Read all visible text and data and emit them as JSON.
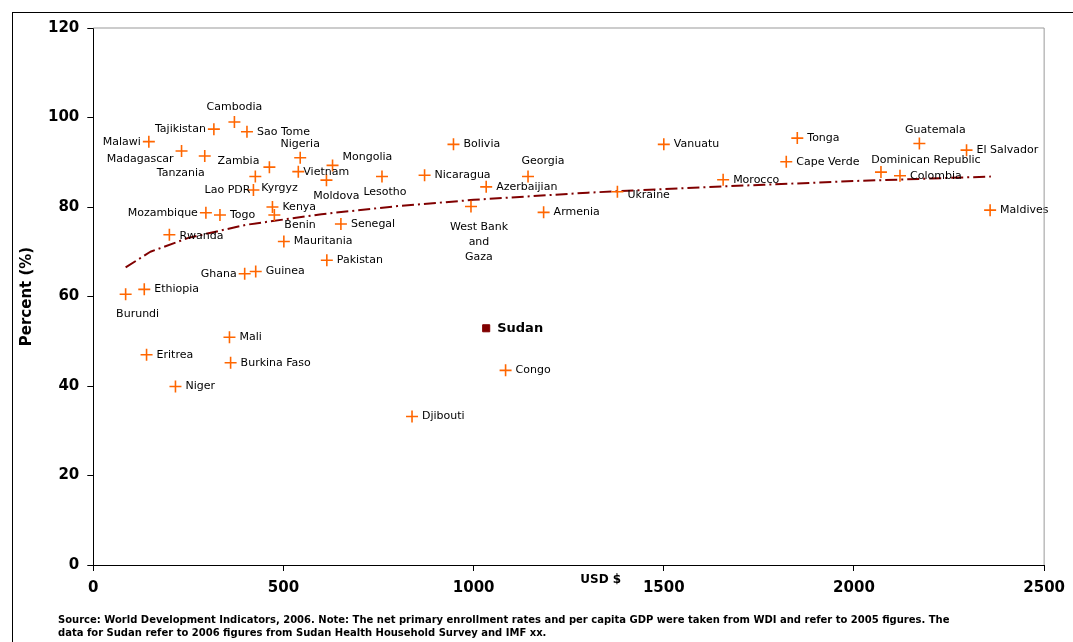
{
  "chart_data": {
    "type": "scatter",
    "xlabel": "USD $",
    "ylabel": "Percent (%)",
    "xlim": [
      0,
      2500
    ],
    "xticks": [
      0,
      500,
      1000,
      1500,
      2000,
      2500
    ],
    "ylim": [
      0,
      120
    ],
    "yticks": [
      0,
      20,
      40,
      60,
      80,
      100,
      120
    ],
    "grid": false,
    "marker": "cross",
    "series": [
      {
        "color": "#ff6600",
        "x": [
          371,
          317,
          404,
          146,
          232,
          293,
          463,
          544,
          539,
          629,
          613,
          759,
          421,
          426,
          471,
          476,
          296,
          333,
          200,
          651,
          501,
          614,
          398,
          427,
          134,
          85,
          358,
          140,
          361,
          216,
          947,
          871,
          1143,
          1033,
          993,
          1184,
          1084,
          838,
          1378,
          1500,
          1656,
          1822,
          1851,
          2071,
          2121,
          2172,
          2296,
          2358
        ],
        "values": [
          99.0,
          97.4,
          96.8,
          94.6,
          92.5,
          91.4,
          88.9,
          91.0,
          87.9,
          89.3,
          86.0,
          86.8,
          83.8,
          86.8,
          80.0,
          78.2,
          78.7,
          78.2,
          73.8,
          76.2,
          72.3,
          68.1,
          65.1,
          65.6,
          61.6,
          60.5,
          50.9,
          47.0,
          45.2,
          39.9,
          94.0,
          87.1,
          86.8,
          84.5,
          80.1,
          78.8,
          43.5,
          33.2,
          83.4,
          94.0,
          86.1,
          90.1,
          95.4,
          87.8,
          87.0,
          94.2,
          92.7,
          79.3
        ]
      },
      {
        "name": "Sudan",
        "color": "#800000",
        "marker": "square",
        "x": [
          1033
        ],
        "values": [
          52.9
        ]
      },
      {
        "type": "line",
        "color": "#800000",
        "line_style": "dashed",
        "marker": "none",
        "x": [
          85,
          150,
          250,
          400,
          600,
          800,
          1000,
          1300,
          1600,
          2000,
          2360
        ],
        "values": [
          66.5,
          70.0,
          73.1,
          76.0,
          78.4,
          80.2,
          81.6,
          83.2,
          84.4,
          85.8,
          86.8
        ]
      }
    ],
    "annotations": [
      {
        "text": "Cambodia",
        "x": 371,
        "y": 99.0
      },
      {
        "text": "Tajikistan",
        "x": 317,
        "y": 97.4
      },
      {
        "text": "Sao Tome",
        "x": 404,
        "y": 96.8
      },
      {
        "text": "Malawi",
        "x": 146,
        "y": 94.6
      },
      {
        "text": "Madagascar",
        "x": 232,
        "y": 92.5
      },
      {
        "text": "Tanzania",
        "x": 293,
        "y": 91.4
      },
      {
        "text": "Zambia",
        "x": 463,
        "y": 88.9
      },
      {
        "text": "Nigeria",
        "x": 544,
        "y": 91.0
      },
      {
        "text": "Vietnam",
        "x": 539,
        "y": 87.9
      },
      {
        "text": "Mongolia",
        "x": 629,
        "y": 89.3
      },
      {
        "text": "Moldova",
        "x": 613,
        "y": 86.0
      },
      {
        "text": "Lesotho",
        "x": 759,
        "y": 86.8
      },
      {
        "text": "Lao PDR",
        "x": 421,
        "y": 83.8
      },
      {
        "text": "Kyrgyz",
        "x": 426,
        "y": 86.8
      },
      {
        "text": "Kenya",
        "x": 471,
        "y": 80.0
      },
      {
        "text": "Benin",
        "x": 476,
        "y": 78.2
      },
      {
        "text": "Mozambique",
        "x": 296,
        "y": 78.7
      },
      {
        "text": "Togo",
        "x": 333,
        "y": 78.2
      },
      {
        "text": "Rwanda",
        "x": 200,
        "y": 73.8
      },
      {
        "text": "Senegal",
        "x": 651,
        "y": 76.2
      },
      {
        "text": "Mauritania",
        "x": 501,
        "y": 72.3
      },
      {
        "text": "Pakistan",
        "x": 614,
        "y": 68.1
      },
      {
        "text": "Ghana",
        "x": 398,
        "y": 65.1
      },
      {
        "text": "Guinea",
        "x": 427,
        "y": 65.6
      },
      {
        "text": "Ethiopia",
        "x": 134,
        "y": 61.6
      },
      {
        "text": "Burundi",
        "x": 85,
        "y": 60.5
      },
      {
        "text": "Mali",
        "x": 358,
        "y": 50.9
      },
      {
        "text": "Eritrea",
        "x": 140,
        "y": 47.0
      },
      {
        "text": "Burkina Faso",
        "x": 361,
        "y": 45.2
      },
      {
        "text": "Niger",
        "x": 216,
        "y": 39.9
      },
      {
        "text": "Bolivia",
        "x": 947,
        "y": 94.0
      },
      {
        "text": "Nicaragua",
        "x": 871,
        "y": 87.1
      },
      {
        "text": "Georgia",
        "x": 1143,
        "y": 86.8
      },
      {
        "text": "Azerbaijian",
        "x": 1033,
        "y": 84.5
      },
      {
        "text": "West Bank and Gaza",
        "x": 993,
        "y": 80.1
      },
      {
        "text": "Armenia",
        "x": 1184,
        "y": 78.8
      },
      {
        "text": "Congo",
        "x": 1084,
        "y": 43.5
      },
      {
        "text": "Djibouti",
        "x": 838,
        "y": 33.2
      },
      {
        "text": "Ukraine",
        "x": 1378,
        "y": 83.4
      },
      {
        "text": "Vanuatu",
        "x": 1500,
        "y": 94.0
      },
      {
        "text": "Morocco",
        "x": 1656,
        "y": 86.1
      },
      {
        "text": "Cape Verde",
        "x": 1822,
        "y": 90.1
      },
      {
        "text": "Tonga",
        "x": 1851,
        "y": 95.4
      },
      {
        "text": "Dominican Republic",
        "x": 2071,
        "y": 87.8
      },
      {
        "text": "Colombia",
        "x": 2121,
        "y": 87.0
      },
      {
        "text": "Guatemala",
        "x": 2172,
        "y": 94.2
      },
      {
        "text": "El Salvador",
        "x": 2296,
        "y": 92.7
      },
      {
        "text": "Maldives",
        "x": 2358,
        "y": 79.3
      },
      "Source: World Development Indicators, 2006.  Note: The net primary enrollment rates and per capita GDP were taken from WDI and refer to 2005 figures. The data for Sudan refer to 2006 figures from Sudan Health Household Survey and IMF xx."
    ]
  }
}
